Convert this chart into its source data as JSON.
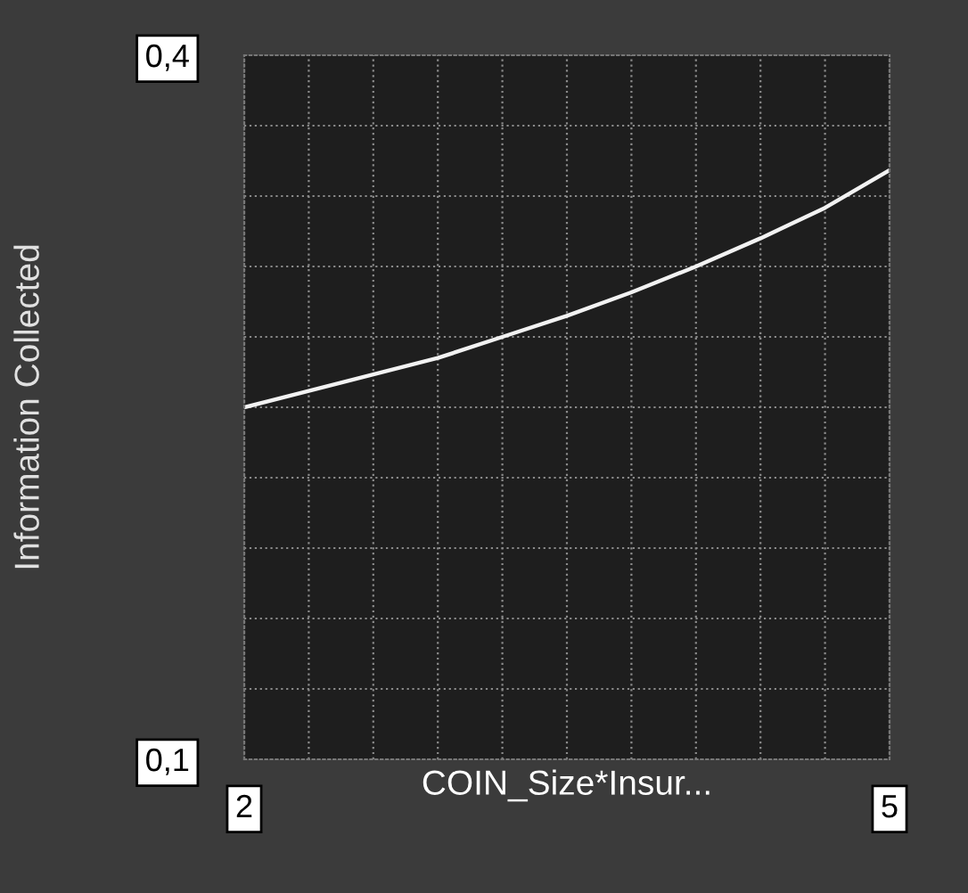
{
  "chart_data": {
    "type": "line",
    "xlabel": "COIN_Size*Insur...",
    "ylabel": "Information Collected",
    "x": [
      2,
      2.3,
      2.6,
      2.9,
      3.2,
      3.5,
      3.8,
      4.1,
      4.4,
      4.7,
      5
    ],
    "series": [
      {
        "color": "#f2f2f2",
        "values": [
          0.25,
          0.257,
          0.264,
          0.271,
          0.28,
          0.289,
          0.299,
          0.31,
          0.322,
          0.335,
          0.351
        ]
      }
    ],
    "xlim": [
      2,
      5
    ],
    "ylim": [
      0.1,
      0.4
    ],
    "xticks": [
      {
        "value": 2,
        "label": "2"
      },
      {
        "value": 2.3,
        "label": null
      },
      {
        "value": 2.6,
        "label": null
      },
      {
        "value": 2.9,
        "label": null
      },
      {
        "value": 3.2,
        "label": null
      },
      {
        "value": 3.5,
        "label": null
      },
      {
        "value": 3.8,
        "label": null
      },
      {
        "value": 4.1,
        "label": null
      },
      {
        "value": 4.4,
        "label": null
      },
      {
        "value": 4.7,
        "label": null
      },
      {
        "value": 5,
        "label": "5"
      }
    ],
    "yticks": [
      {
        "value": 0.1,
        "label": "0,1"
      },
      {
        "value": 0.13,
        "label": null
      },
      {
        "value": 0.16,
        "label": null
      },
      {
        "value": 0.19,
        "label": null
      },
      {
        "value": 0.22,
        "label": null
      },
      {
        "value": 0.25,
        "label": null
      },
      {
        "value": 0.28,
        "label": null
      },
      {
        "value": 0.31,
        "label": null
      },
      {
        "value": 0.34,
        "label": null
      },
      {
        "value": 0.37,
        "label": null
      },
      {
        "value": 0.4,
        "label": "0,4"
      }
    ],
    "grid": true,
    "marker": "none",
    "line_style": "solid"
  }
}
